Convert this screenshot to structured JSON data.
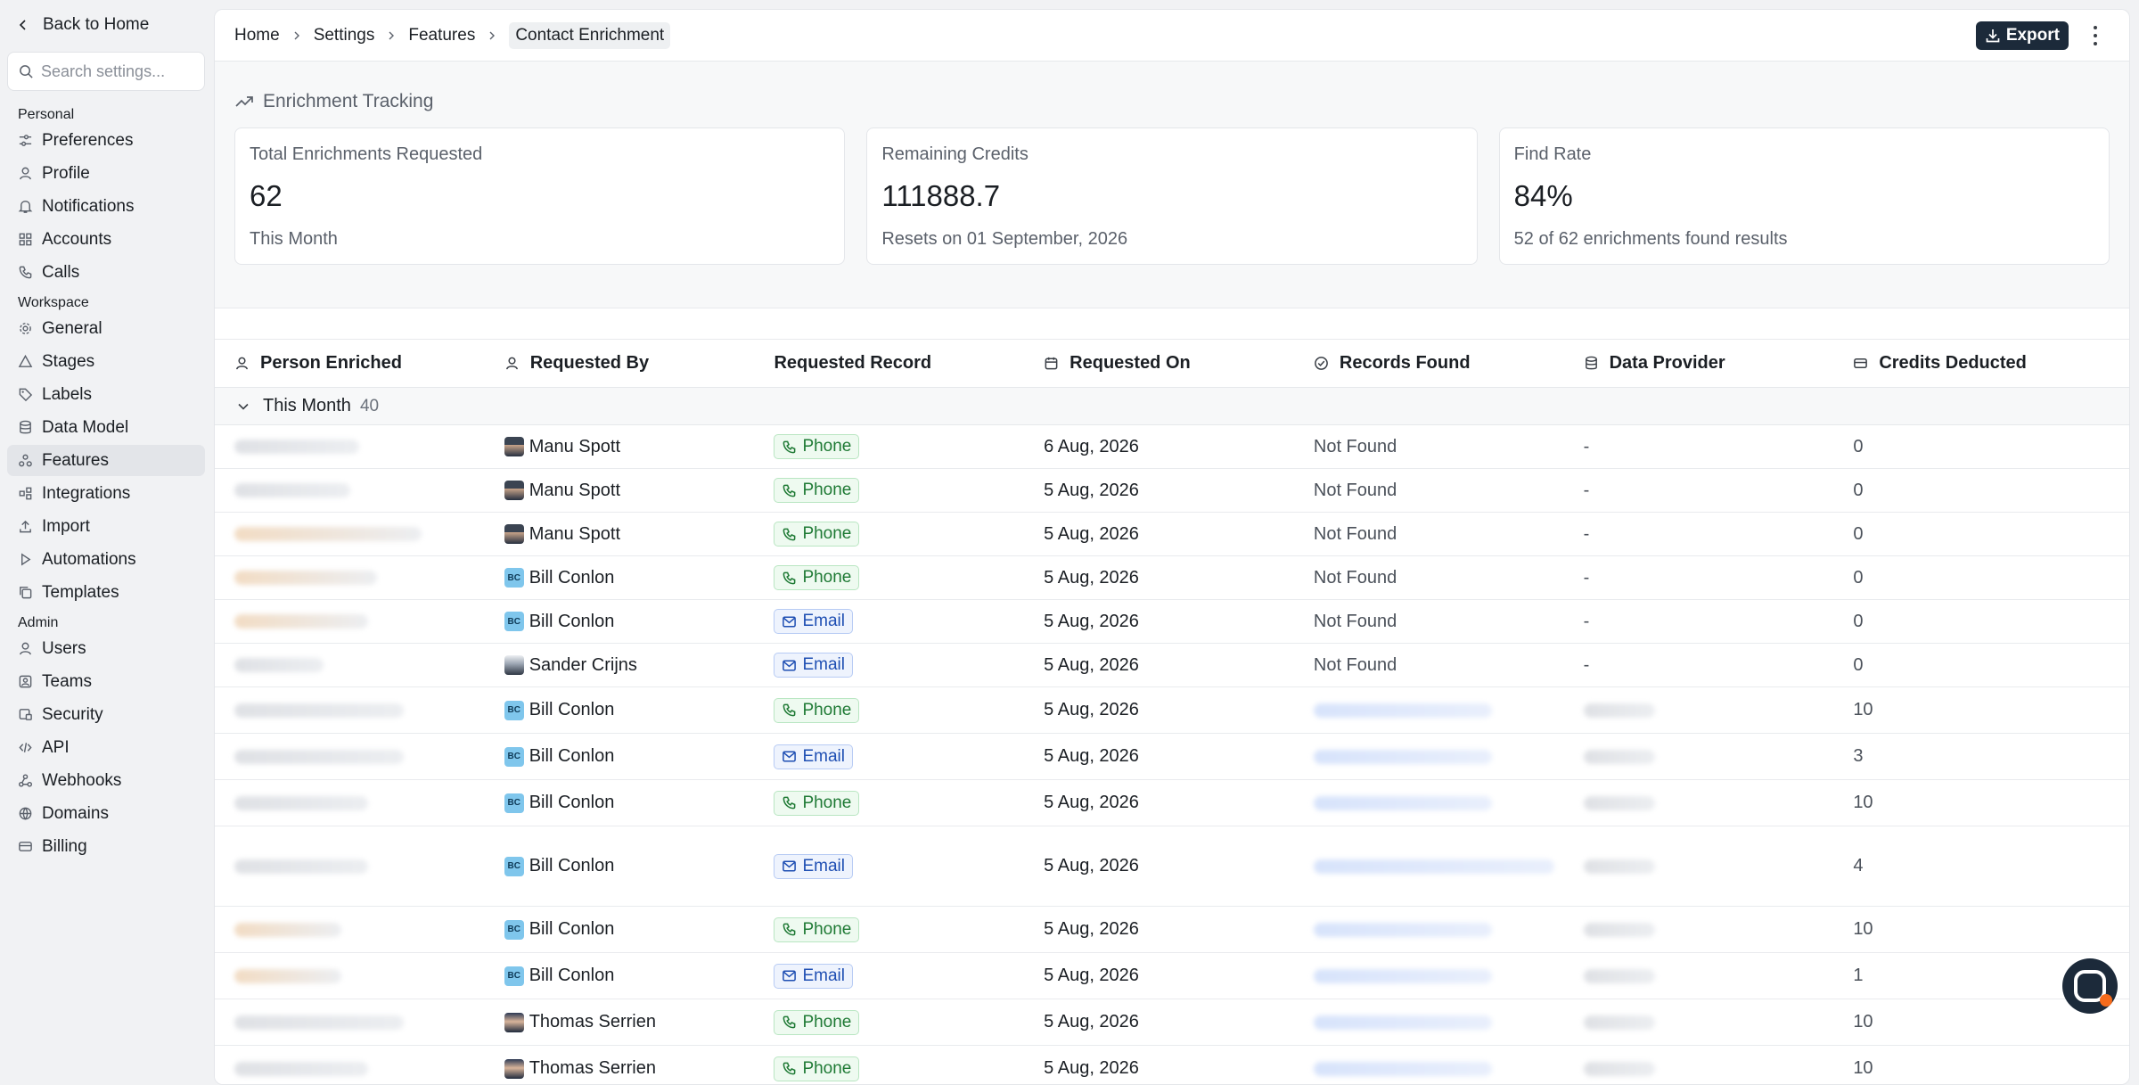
{
  "sidebar": {
    "back_label": "Back to Home",
    "search_placeholder": "Search settings...",
    "sections": [
      {
        "label": "Personal",
        "items": [
          {
            "label": "Preferences",
            "icon": "sliders-icon"
          },
          {
            "label": "Profile",
            "icon": "user-icon"
          },
          {
            "label": "Notifications",
            "icon": "bell-icon"
          },
          {
            "label": "Accounts",
            "icon": "grid-icon"
          },
          {
            "label": "Calls",
            "icon": "phone-icon"
          }
        ]
      },
      {
        "label": "Workspace",
        "items": [
          {
            "label": "General",
            "icon": "gear-icon"
          },
          {
            "label": "Stages",
            "icon": "triangle-icon"
          },
          {
            "label": "Labels",
            "icon": "tag-icon"
          },
          {
            "label": "Data Model",
            "icon": "database-icon"
          },
          {
            "label": "Features",
            "icon": "features-icon",
            "active": true
          },
          {
            "label": "Integrations",
            "icon": "puzzle-icon"
          },
          {
            "label": "Import",
            "icon": "upload-icon"
          },
          {
            "label": "Automations",
            "icon": "play-icon"
          },
          {
            "label": "Templates",
            "icon": "copy-icon"
          }
        ]
      },
      {
        "label": "Admin",
        "items": [
          {
            "label": "Users",
            "icon": "users-icon"
          },
          {
            "label": "Teams",
            "icon": "team-icon"
          },
          {
            "label": "Security",
            "icon": "lock-icon"
          },
          {
            "label": "API",
            "icon": "code-icon"
          },
          {
            "label": "Webhooks",
            "icon": "webhook-icon"
          },
          {
            "label": "Domains",
            "icon": "globe-icon"
          },
          {
            "label": "Billing",
            "icon": "card-icon"
          }
        ]
      }
    ]
  },
  "header": {
    "breadcrumbs": [
      "Home",
      "Settings",
      "Features",
      "Contact Enrichment"
    ],
    "export_label": "Export"
  },
  "tracking": {
    "title": "Enrichment Tracking",
    "cards": [
      {
        "label": "Total Enrichments Requested",
        "value": "62",
        "sub": "This Month"
      },
      {
        "label": "Remaining Credits",
        "value": "111888.7",
        "sub": "Resets on 01 September, 2026"
      },
      {
        "label": "Find Rate",
        "value": "84%",
        "sub": "52 of 62 enrichments found results"
      }
    ]
  },
  "table": {
    "columns": [
      "Person Enriched",
      "Requested By",
      "Requested Record",
      "Requested On",
      "Records Found",
      "Data Provider",
      "Credits Deducted"
    ],
    "group": {
      "label": "This Month",
      "count": "40"
    },
    "rows": [
      {
        "requested_by": "Manu Spott",
        "avatar": "photo",
        "record": "Phone",
        "date": "6 Aug, 2026",
        "found": "Not Found",
        "provider": "-",
        "credits": "0"
      },
      {
        "requested_by": "Manu Spott",
        "avatar": "photo",
        "record": "Phone",
        "date": "5 Aug, 2026",
        "found": "Not Found",
        "provider": "-",
        "credits": "0"
      },
      {
        "requested_by": "Manu Spott",
        "avatar": "photo",
        "record": "Phone",
        "date": "5 Aug, 2026",
        "found": "Not Found",
        "provider": "-",
        "credits": "0"
      },
      {
        "requested_by": "Bill Conlon",
        "avatar": "initials",
        "initials": "BC",
        "record": "Phone",
        "date": "5 Aug, 2026",
        "found": "Not Found",
        "provider": "-",
        "credits": "0"
      },
      {
        "requested_by": "Bill Conlon",
        "avatar": "initials",
        "initials": "BC",
        "record": "Email",
        "date": "5 Aug, 2026",
        "found": "Not Found",
        "provider": "-",
        "credits": "0"
      },
      {
        "requested_by": "Sander Crijns",
        "avatar": "photo2",
        "record": "Email",
        "date": "5 Aug, 2026",
        "found": "Not Found",
        "provider": "-",
        "credits": "0"
      },
      {
        "requested_by": "Bill Conlon",
        "avatar": "initials",
        "initials": "BC",
        "record": "Phone",
        "date": "5 Aug, 2026",
        "found": "",
        "provider": "",
        "credits": "10"
      },
      {
        "requested_by": "Bill Conlon",
        "avatar": "initials",
        "initials": "BC",
        "record": "Email",
        "date": "5 Aug, 2026",
        "found": "",
        "provider": "",
        "credits": "3"
      },
      {
        "requested_by": "Bill Conlon",
        "avatar": "initials",
        "initials": "BC",
        "record": "Phone",
        "date": "5 Aug, 2026",
        "found": "",
        "provider": "",
        "credits": "10"
      },
      {
        "requested_by": "Bill Conlon",
        "avatar": "initials",
        "initials": "BC",
        "record": "Email",
        "date": "5 Aug, 2026",
        "found": "",
        "provider": "",
        "credits": "4",
        "tall": true
      },
      {
        "requested_by": "Bill Conlon",
        "avatar": "initials",
        "initials": "BC",
        "record": "Phone",
        "date": "5 Aug, 2026",
        "found": "",
        "provider": "",
        "credits": "10"
      },
      {
        "requested_by": "Bill Conlon",
        "avatar": "initials",
        "initials": "BC",
        "record": "Email",
        "date": "5 Aug, 2026",
        "found": "",
        "provider": "",
        "credits": "1"
      },
      {
        "requested_by": "Thomas Serrien",
        "avatar": "photo3",
        "record": "Phone",
        "date": "5 Aug, 2026",
        "found": "",
        "provider": "",
        "credits": "10"
      },
      {
        "requested_by": "Thomas Serrien",
        "avatar": "photo3",
        "record": "Phone",
        "date": "5 Aug, 2026",
        "found": "",
        "provider": "",
        "credits": "10"
      }
    ]
  }
}
